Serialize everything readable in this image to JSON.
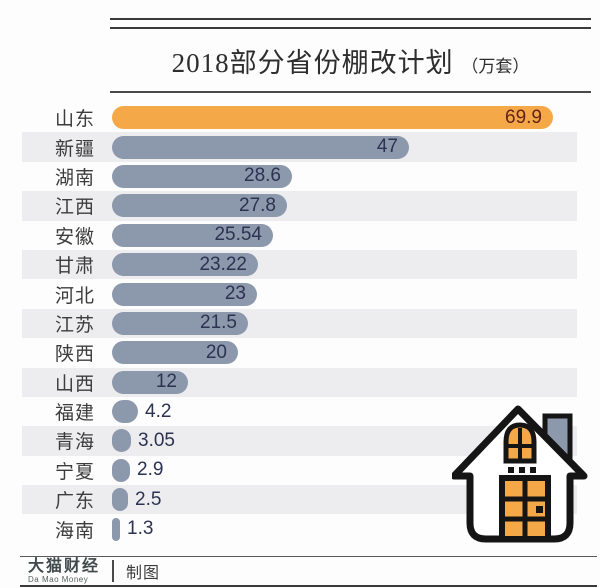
{
  "header": {
    "title": "2018部分省份棚改计划",
    "unit": "（万套）"
  },
  "chart_data": {
    "type": "bar",
    "orientation": "horizontal",
    "title": "2018部分省份棚改计划（万套）",
    "unit_label": "万套",
    "categories": [
      "山东",
      "新疆",
      "湖南",
      "江西",
      "安徽",
      "甘肃",
      "河北",
      "江苏",
      "陕西",
      "山西",
      "福建",
      "青海",
      "宁夏",
      "广东",
      "海南"
    ],
    "values": [
      69.9,
      47,
      28.6,
      27.8,
      25.54,
      23.22,
      23,
      21.5,
      20,
      12,
      4.2,
      3.05,
      2.9,
      2.5,
      1.3
    ],
    "highlight_index": 0,
    "value_labels_shown": true,
    "xlim": [
      0,
      70
    ],
    "grid": "off",
    "legend": "none",
    "row_striping": "alternate"
  },
  "colors": {
    "highlight_bar": "#F5A848",
    "bar": "#8C98AC",
    "highlight_value_text": "#63221A",
    "value_text": "#2B3350",
    "stripe": "#EDEDF0",
    "label_text": "#3C3C3C",
    "house_outline": "#151515",
    "house_accent": "#F5A848",
    "house_chimney": "#8C98AC"
  },
  "footer": {
    "brand": "大猫财经",
    "brand_sub": "Da Mao Money",
    "credit": "制图"
  },
  "decorations": {
    "house_icon": "house-icon"
  }
}
